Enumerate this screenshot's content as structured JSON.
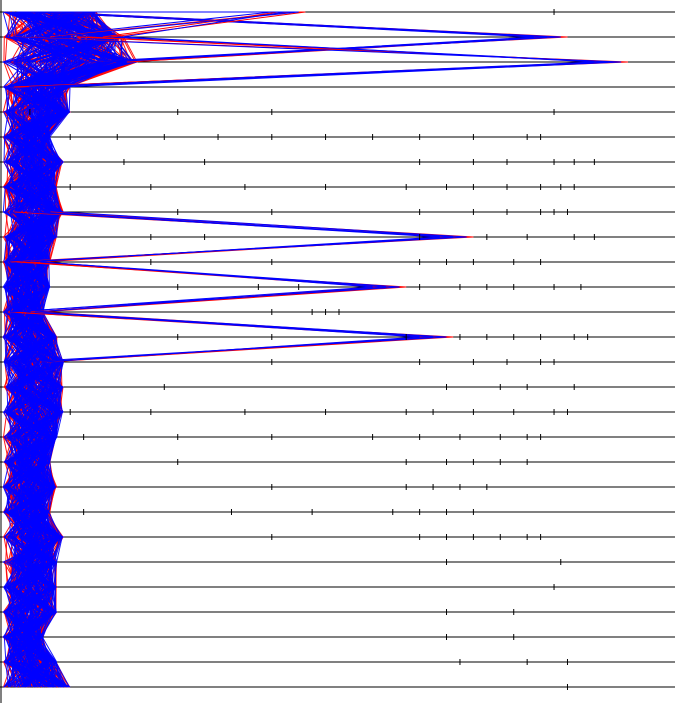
{
  "chart_data": {
    "type": "parallel-coordinates",
    "title": "",
    "xlabel": "",
    "ylabel": "",
    "axes_count": 28,
    "x_range": [
      0,
      100
    ],
    "grid": false,
    "legend": "none",
    "series": [
      {
        "color": "#ff0000",
        "polyline_count": 130
      },
      {
        "color": "#0000ff",
        "polyline_count": 130
      }
    ],
    "axis_extents": [
      14,
      18,
      20,
      10,
      10,
      7,
      9,
      8,
      9,
      8,
      7,
      7,
      6,
      8,
      9,
      9,
      9,
      8,
      7,
      8,
      7,
      9,
      8,
      8,
      8,
      6,
      8,
      10
    ],
    "axis_ticks": [
      [
        82
      ],
      [],
      [],
      [],
      [
        4,
        26,
        40,
        82
      ],
      [
        10,
        17,
        24,
        32,
        40,
        48,
        55,
        62,
        70,
        78,
        80
      ],
      [
        18,
        30,
        62,
        70,
        75,
        82,
        85,
        88
      ],
      [
        10,
        22,
        36,
        48,
        60,
        66,
        70,
        75,
        80,
        83,
        85
      ],
      [
        26,
        40,
        62,
        70,
        75,
        80,
        82,
        84
      ],
      [
        22,
        30,
        62,
        72,
        78,
        85,
        88
      ],
      [
        22,
        40,
        62,
        66,
        70,
        76,
        80
      ],
      [
        26,
        38,
        44,
        62,
        68,
        72,
        76,
        82,
        86
      ],
      [
        40,
        46,
        48,
        50
      ],
      [
        26,
        40,
        60,
        68,
        72,
        76,
        80,
        85,
        87
      ],
      [
        40,
        62,
        70,
        75,
        80,
        82
      ],
      [
        24,
        66,
        74,
        78,
        85
      ],
      [
        10,
        22,
        36,
        48,
        60,
        64,
        70,
        76,
        82,
        84
      ],
      [
        12,
        26,
        40,
        55,
        62,
        68,
        74,
        78,
        80
      ],
      [
        26,
        60,
        66,
        70,
        74,
        78
      ],
      [
        40,
        60,
        64,
        68,
        72
      ],
      [
        12,
        34,
        46,
        58,
        62,
        66,
        70
      ],
      [
        40,
        62,
        66,
        70,
        74,
        78,
        80
      ],
      [
        66,
        83
      ],
      [
        82
      ],
      [
        66,
        76
      ],
      [
        66,
        76
      ],
      [
        68,
        78,
        84
      ],
      [
        84
      ]
    ]
  }
}
